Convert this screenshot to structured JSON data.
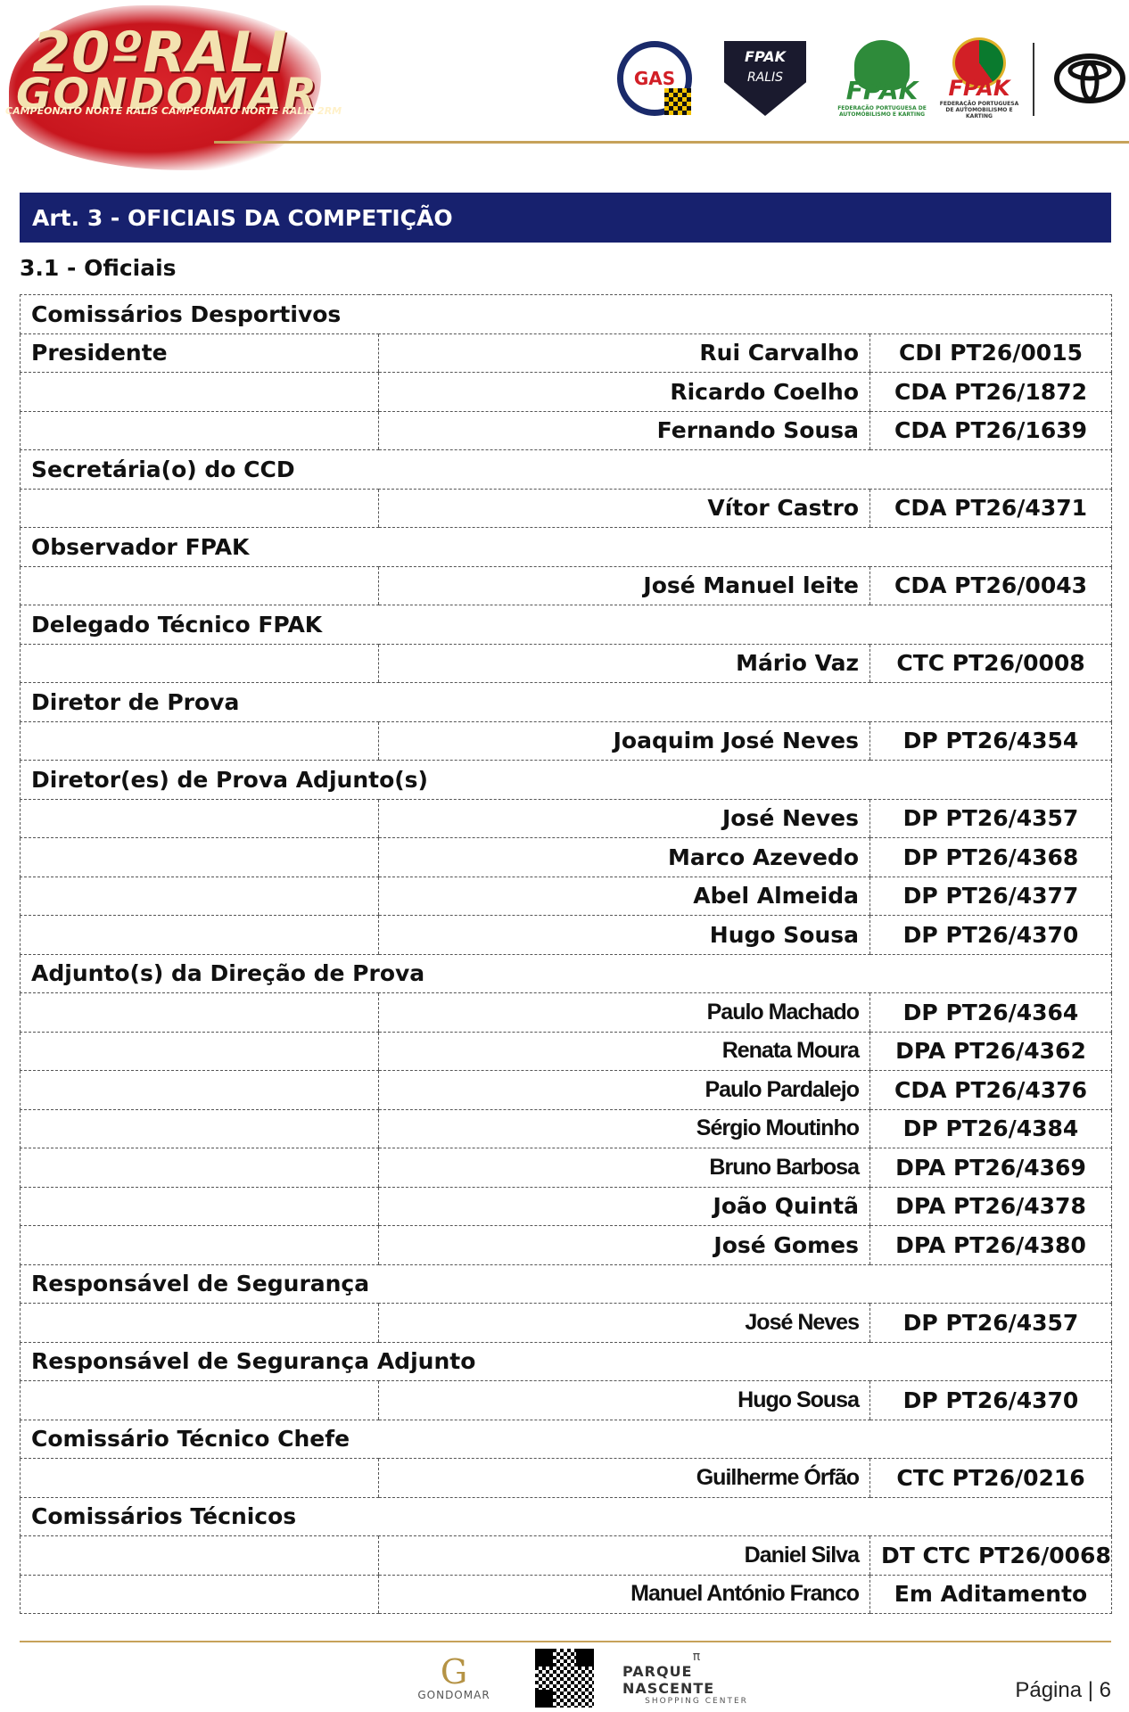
{
  "header": {
    "event_logo": {
      "line1": "20ºRALI",
      "line2": "GONDOMAR",
      "line3": "CAMPEONATO NORTE RALIS  CAMPEONATO NORTE RALIS 2RM"
    },
    "partners": {
      "gas": "GAS",
      "cnr_top": "FPAK",
      "cnr_bottom": "RALIS",
      "fpak_green": "FPAK",
      "fpak_green_sub": "FEDERAÇÃO PORTUGUESA DE AUTOMOBILISMO E KARTING",
      "fpak_red": "FPAK",
      "fpak_red_sub": "FEDERAÇÃO PORTUGUESA DE AUTOMOBILISMO E KARTING"
    },
    "brand_colors": {
      "navy": "#17216e",
      "gold": "#c6a25a",
      "red": "#d21f26",
      "green": "#2e8b3a"
    }
  },
  "section": {
    "title": "Art. 3 - OFICIAIS DA COMPETIÇÃO",
    "subtitle": "3.1 - Oficiais"
  },
  "officials": [
    {
      "type": "cat",
      "label": "Comissários Desportivos"
    },
    {
      "type": "row",
      "role": "Presidente",
      "name": "Rui Carvalho",
      "license": "CDI PT26/0015"
    },
    {
      "type": "row",
      "role": "",
      "name": "Ricardo Coelho",
      "license": "CDA PT26/1872"
    },
    {
      "type": "row",
      "role": "",
      "name": "Fernando Sousa",
      "license": "CDA PT26/1639"
    },
    {
      "type": "cat",
      "label": "Secretária(o) do CCD"
    },
    {
      "type": "row",
      "role": "",
      "name": "Vítor Castro",
      "license": "CDA PT26/4371"
    },
    {
      "type": "cat",
      "label": "Observador FPAK"
    },
    {
      "type": "row",
      "role": "",
      "name": "José Manuel leite",
      "license": "CDA PT26/0043"
    },
    {
      "type": "cat",
      "label": "Delegado Técnico FPAK"
    },
    {
      "type": "row",
      "role": "",
      "name": "Mário Vaz",
      "license": "CTC PT26/0008"
    },
    {
      "type": "cat",
      "label": "Diretor de Prova"
    },
    {
      "type": "row",
      "role": "",
      "name": "Joaquim José Neves",
      "license": "DP PT26/4354"
    },
    {
      "type": "cat",
      "label": "Diretor(es) de Prova Adjunto(s)"
    },
    {
      "type": "row",
      "role": "",
      "name": "José Neves",
      "license": "DP PT26/4357"
    },
    {
      "type": "row",
      "role": "",
      "name": "Marco Azevedo",
      "license": "DP PT26/4368"
    },
    {
      "type": "row",
      "role": "",
      "name": "Abel Almeida",
      "license": "DP PT26/4377"
    },
    {
      "type": "row",
      "role": "",
      "name": "Hugo Sousa",
      "license": "DP PT26/4370"
    },
    {
      "type": "cat",
      "label": "Adjunto(s) da Direção de Prova"
    },
    {
      "type": "row",
      "role": "",
      "name": "Paulo Machado",
      "license": "DP PT26/4364",
      "condensed": true
    },
    {
      "type": "row",
      "role": "",
      "name": "Renata Moura",
      "license": "DPA PT26/4362",
      "condensed": true
    },
    {
      "type": "row",
      "role": "",
      "name": "Paulo Pardalejo",
      "license": "CDA PT26/4376",
      "condensed": true
    },
    {
      "type": "row",
      "role": "",
      "name": "Sérgio Moutinho",
      "license": "DP PT26/4384",
      "condensed": true
    },
    {
      "type": "row",
      "role": "",
      "name": "Bruno Barbosa",
      "license": "DPA PT26/4369",
      "condensed": true
    },
    {
      "type": "row",
      "role": "",
      "name": "João Quintã",
      "license": "DPA PT26/4378"
    },
    {
      "type": "row",
      "role": "",
      "name": "José Gomes",
      "license": "DPA PT26/4380"
    },
    {
      "type": "cat",
      "label": "Responsável de Segurança"
    },
    {
      "type": "row",
      "role": "",
      "name": "José Neves",
      "license": "DP PT26/4357",
      "condensed": true
    },
    {
      "type": "cat",
      "label": "Responsável de Segurança Adjunto"
    },
    {
      "type": "row",
      "role": "",
      "name": "Hugo Sousa",
      "license": "DP PT26/4370",
      "condensed": true
    },
    {
      "type": "cat",
      "label": "Comissário Técnico Chefe"
    },
    {
      "type": "row",
      "role": "",
      "name": "Guilherme Órfão",
      "license": "CTC PT26/0216",
      "condensed": true
    },
    {
      "type": "cat",
      "label": "Comissários Técnicos"
    },
    {
      "type": "row",
      "role": "",
      "name": "Daniel Silva",
      "license": "DT CTC PT26/0068",
      "condensed": true
    },
    {
      "type": "row",
      "role": "",
      "name": "Manuel António Franco",
      "license": "Em Aditamento",
      "condensed": true
    }
  ],
  "footer": {
    "gondomar_mark": "G",
    "gondomar_text": "GONDOMAR",
    "parque_top": "π",
    "parque_name": "PARQUE NASCENTE",
    "parque_sub": "SHOPPING CENTER",
    "page_label": "Página | 6"
  }
}
